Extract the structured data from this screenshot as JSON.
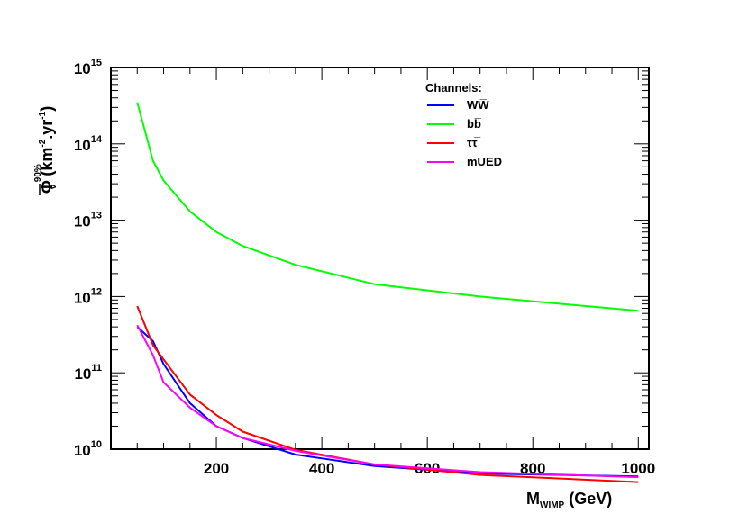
{
  "chart_data": {
    "type": "line",
    "xlabel": {
      "main": "M",
      "sub": "WIMP",
      "unit": " (GeV)"
    },
    "ylabel": {
      "symbol": "Φ",
      "sub": "ν",
      "sup": "90%",
      "unit_open": " (km",
      "unit_exp1": "-2",
      "unit_mid": ".yr",
      "unit_exp2": "-1",
      "unit_close": ")"
    },
    "xlim": [
      0,
      1020
    ],
    "ylim_log10": [
      10,
      15
    ],
    "log_y": true,
    "grid": false,
    "x_ticks": [
      200,
      400,
      600,
      800,
      1000
    ],
    "x_tick_labels": [
      "200",
      "400",
      "600",
      "800",
      "1000"
    ],
    "y_ticks": [
      {
        "base": "10",
        "exp": "10",
        "log": 10
      },
      {
        "base": "10",
        "exp": "11",
        "log": 11
      },
      {
        "base": "10",
        "exp": "12",
        "log": 12
      },
      {
        "base": "10",
        "exp": "13",
        "log": 13
      },
      {
        "base": "10",
        "exp": "14",
        "log": 14
      },
      {
        "base": "10",
        "exp": "15",
        "log": 15
      }
    ],
    "legend": {
      "title": "Channels:",
      "placement": "top-right",
      "entries": [
        {
          "label": "WW̅",
          "color": "#0000ff"
        },
        {
          "label": "bb̅",
          "color": "#00ff00"
        },
        {
          "label": "ττ̅",
          "color": "#ff0000"
        },
        {
          "label": "mUED",
          "color": "#ff00ff"
        }
      ]
    },
    "series": [
      {
        "key": "ww",
        "color": "#0000ff",
        "x": [
          50,
          80,
          100,
          150,
          200,
          250,
          350,
          500,
          700,
          1000
        ],
        "y": [
          400000000000.0,
          260000000000.0,
          130000000000.0,
          40000000000.0,
          20000000000.0,
          14000000000.0,
          8500000000.0,
          6000000000.0,
          4800000000.0,
          4400000000.0
        ]
      },
      {
        "key": "bb",
        "color": "#00ff00",
        "x": [
          50,
          80,
          100,
          150,
          200,
          250,
          350,
          500,
          700,
          1000
        ],
        "y": [
          350000000000000.0,
          60000000000000.0,
          33000000000000.0,
          13000000000000.0,
          7000000000000.0,
          4600000000000.0,
          2600000000000.0,
          1450000000000.0,
          1000000000000.0,
          650000000000.0
        ]
      },
      {
        "key": "tautau",
        "color": "#ff0000",
        "x": [
          50,
          80,
          100,
          150,
          200,
          250,
          350,
          500,
          700,
          1000
        ],
        "y": [
          750000000000.0,
          230000000000.0,
          150000000000.0,
          52000000000.0,
          28000000000.0,
          17000000000.0,
          9800000000.0,
          6300000000.0,
          4600000000.0,
          3700000000.0
        ]
      },
      {
        "key": "mued",
        "color": "#ff00ff",
        "x": [
          50,
          80,
          100,
          150,
          200,
          250,
          350,
          500,
          700,
          1000
        ],
        "y": [
          420000000000.0,
          170000000000.0,
          75000000000.0,
          35000000000.0,
          20000000000.0,
          14000000000.0,
          9500000000.0,
          6300000000.0,
          5000000000.0,
          4300000000.0
        ]
      }
    ]
  }
}
